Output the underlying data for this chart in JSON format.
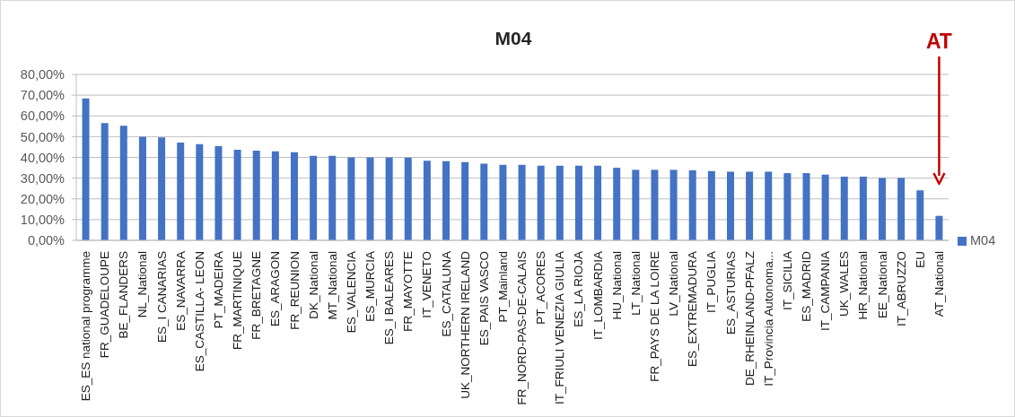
{
  "chart_data": {
    "type": "bar",
    "title": "M04",
    "categories": [
      "ES_ES national programme",
      "FR_GUADELOUPE",
      "BE_FLANDERS",
      "NL_National",
      "ES_I CANARIAS",
      "ES_NAVARRA",
      "ES_CASTILLA- LEON",
      "PT_MADEIRA",
      "FR_MARTINIQUE",
      "FR_BRETAGNE",
      "ES_ARAGON",
      "FR_REUNION",
      "DK_National",
      "MT_National",
      "ES_VALENCIA",
      "ES_MURCIA",
      "ES_I BALEARES",
      "FR_MAYOTTE",
      "IT_VENETO",
      "ES_CATALUNA",
      "UK_NORTHERN IRELAND",
      "ES_PAIS VASCO",
      "PT_Mainland",
      "FR_NORD-PAS-DE-CALAIS",
      "PT_ACORES",
      "IT_FRIULI VENEZIA GIULIA",
      "ES_LA RIOJA",
      "IT_LOMBARDIA",
      "HU_National",
      "LT_National",
      "FR_PAYS DE LA LOIRE",
      "LV_National",
      "ES_EXTREMADURA",
      "IT_PUGLIA",
      "ES_ASTURIAS",
      "DE_RHEINLAND-PFALZ",
      "IT_Provincia Autonoma...",
      "IT_SICILIA",
      "ES_MADRID",
      "IT_CAMPANIA",
      "UK_WALES",
      "HR_National",
      "EE_National",
      "IT_ABRUZZO",
      "EU",
      "AT_National"
    ],
    "series": [
      {
        "name": "M04",
        "color": "#4472c4",
        "values": [
          68.4,
          56.5,
          55.2,
          50.0,
          49.6,
          47.1,
          46.4,
          45.4,
          43.7,
          43.2,
          42.9,
          42.5,
          40.8,
          40.8,
          40.0,
          40.0,
          40.0,
          39.9,
          38.4,
          38.2,
          37.7,
          37.0,
          36.4,
          36.4,
          36.0,
          36.0,
          36.0,
          36.0,
          35.0,
          34.0,
          34.0,
          34.0,
          33.8,
          33.4,
          33.1,
          33.1,
          33.1,
          32.4,
          32.4,
          31.7,
          30.7,
          30.7,
          30.1,
          30.1,
          24.1,
          11.8
        ]
      }
    ],
    "ylim": [
      0,
      80
    ],
    "yticks": [
      {
        "value": 0,
        "label": "0,00%"
      },
      {
        "value": 10,
        "label": "10,00%"
      },
      {
        "value": 20,
        "label": "20,00%"
      },
      {
        "value": 30,
        "label": "30,00%"
      },
      {
        "value": 40,
        "label": "40,00%"
      },
      {
        "value": 50,
        "label": "50,00%"
      },
      {
        "value": 60,
        "label": "60,00%"
      },
      {
        "value": 70,
        "label": "70,00%"
      },
      {
        "value": 80,
        "label": "80,00%"
      }
    ],
    "grid": "y",
    "legend": "right",
    "annotations": [
      "AT"
    ]
  }
}
